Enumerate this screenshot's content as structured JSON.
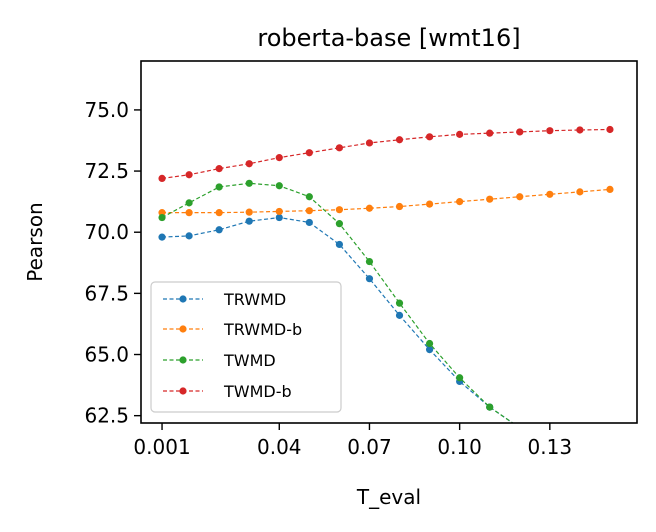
{
  "chart_data": {
    "type": "line",
    "title": "roberta-base [wmt16]",
    "xlabel": "T_eval",
    "ylabel": "Pearson",
    "xlim": [
      -0.006,
      0.159
    ],
    "ylim": [
      62.2,
      77.0
    ],
    "xticks": [
      0.001,
      0.04,
      0.07,
      0.1,
      0.13
    ],
    "xtick_labels": [
      "0.001",
      "0.04",
      "0.07",
      "0.10",
      "0.13"
    ],
    "yticks": [
      62.5,
      65.0,
      67.5,
      70.0,
      72.5,
      75.0
    ],
    "ytick_labels": [
      "62.5",
      "65.0",
      "67.5",
      "70.0",
      "72.5",
      "75.0"
    ],
    "grid": false,
    "legend_position": "lower-left",
    "x": [
      0.001,
      0.01,
      0.02,
      0.03,
      0.04,
      0.05,
      0.06,
      0.07,
      0.08,
      0.09,
      0.1,
      0.11,
      0.12,
      0.13,
      0.14,
      0.15
    ],
    "series": [
      {
        "name": "TRWMD",
        "color": "#1f77b4",
        "values": [
          69.8,
          69.85,
          70.1,
          70.45,
          70.6,
          70.4,
          69.5,
          68.1,
          66.6,
          65.2,
          63.9,
          62.85,
          62.0,
          61.5,
          61.0,
          60.6
        ]
      },
      {
        "name": "TRWMD-b",
        "color": "#ff7f0e",
        "values": [
          70.8,
          70.8,
          70.8,
          70.82,
          70.85,
          70.88,
          70.92,
          70.98,
          71.05,
          71.15,
          71.25,
          71.35,
          71.45,
          71.55,
          71.65,
          71.75
        ]
      },
      {
        "name": "TWMD",
        "color": "#2ca02c",
        "values": [
          70.6,
          71.2,
          71.85,
          72.0,
          71.9,
          71.45,
          70.35,
          68.8,
          67.1,
          65.45,
          64.05,
          62.85,
          62.0,
          61.5,
          61.0,
          60.6
        ]
      },
      {
        "name": "TWMD-b",
        "color": "#d62728",
        "values": [
          72.2,
          72.35,
          72.6,
          72.8,
          73.05,
          73.25,
          73.45,
          73.65,
          73.78,
          73.9,
          74.0,
          74.05,
          74.1,
          74.15,
          74.18,
          74.2
        ]
      }
    ]
  }
}
